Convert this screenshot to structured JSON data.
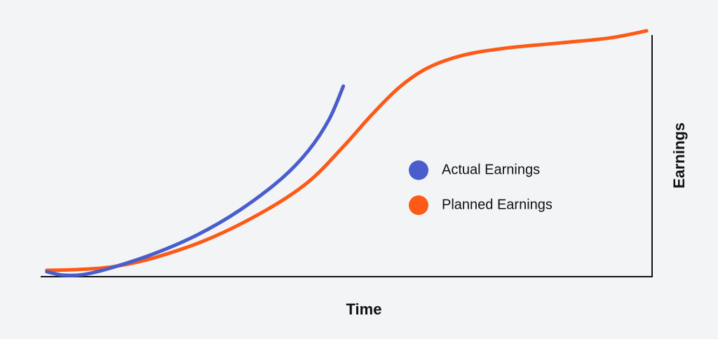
{
  "chart_data": {
    "type": "line",
    "xlabel": "Time",
    "ylabel": "Earnings",
    "xlim": [
      0,
      100
    ],
    "ylim": [
      0,
      100
    ],
    "legend": "center",
    "series": [
      {
        "name": "Actual Earnings",
        "color": "#4a5dcc",
        "x": [
          1.0,
          3.7,
          7.1,
          11.7,
          18.6,
          25.7,
          32.6,
          39.4,
          43.8,
          47.2,
          49.5
        ],
        "values": [
          2.0,
          0.6,
          0.9,
          3.7,
          9.4,
          17.1,
          27.1,
          39.9,
          51.3,
          64.1,
          77.5
        ]
      },
      {
        "name": "Planned Earnings",
        "color": "#fc5a16",
        "x": [
          1.0,
          6.0,
          11.7,
          18.6,
          27.8,
          36.9,
          43.8,
          49.5,
          54.1,
          58.7,
          63.3,
          69.0,
          75.9,
          85.1,
          93.1,
          99.1
        ],
        "values": [
          2.6,
          2.9,
          4.0,
          7.7,
          15.7,
          27.1,
          38.6,
          52.9,
          65.7,
          77.1,
          84.9,
          90.0,
          92.9,
          95.1,
          97.1,
          100
        ]
      }
    ]
  }
}
